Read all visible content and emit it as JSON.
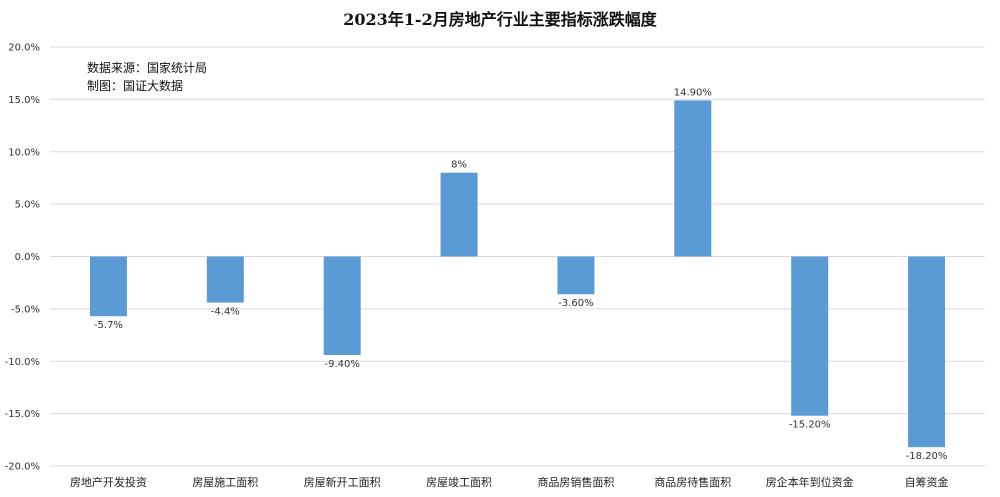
{
  "chart_data": {
    "type": "bar",
    "title": "2023年1-2月房地产行业主要指标涨跌幅度",
    "notes": [
      "数据来源：国家统计局",
      "制图：国证大数据"
    ],
    "categories": [
      "房地产开发投资",
      "房屋施工面积",
      "房屋新开工面积",
      "房屋竣工面积",
      "商品房销售面积",
      "商品房待售面积",
      "房企本年到位资金",
      "自筹资金"
    ],
    "values": [
      -5.7,
      -4.4,
      -9.4,
      8,
      -3.6,
      14.9,
      -15.2,
      -18.2
    ],
    "data_labels": [
      "-5.7%",
      "-4.4%",
      "-9.40%",
      "8%",
      "-3.60%",
      "14.90%",
      "-15.20%",
      "-18.20%"
    ],
    "ylim": [
      -20,
      20
    ],
    "ytick_step": 5,
    "ytick_labels": [
      "20.0%",
      "15.0%",
      "10.0%",
      "5.0%",
      "0.0%",
      "-5.0%",
      "-10.0%",
      "-15.0%",
      "-20.0%"
    ],
    "grid": true,
    "legend": "none",
    "bar_color": "#5B9BD5"
  }
}
